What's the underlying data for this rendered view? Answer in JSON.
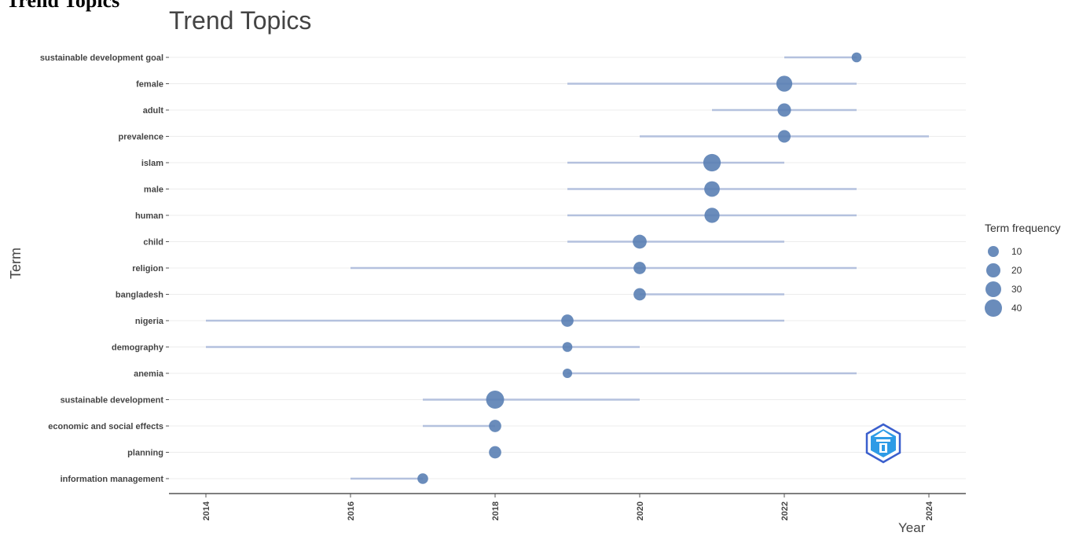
{
  "heading": "Trend Topics",
  "chart_data": {
    "type": "scatter",
    "title": "Trend Topics",
    "xlabel": "Year",
    "ylabel": "Term",
    "xlim": [
      2014,
      2024
    ],
    "x_ticks": [
      2014,
      2016,
      2018,
      2020,
      2022,
      2024
    ],
    "grid": true,
    "legend_position": "right",
    "legend": {
      "title": "Term frequency",
      "entries": [
        10,
        20,
        30,
        40
      ]
    },
    "colors": {
      "point": "#5a80b4",
      "range": "#b4c1de",
      "grid": "#ececec"
    },
    "terms": [
      {
        "term": "sustainable development goal",
        "year_q1": 2022,
        "year_median": 2023,
        "year_q3": 2023,
        "freq": 7
      },
      {
        "term": "female",
        "year_q1": 2019,
        "year_median": 2022,
        "year_q3": 2023,
        "freq": 29
      },
      {
        "term": "adult",
        "year_q1": 2021,
        "year_median": 2022,
        "year_q3": 2023,
        "freq": 18
      },
      {
        "term": "prevalence",
        "year_q1": 2020,
        "year_median": 2022,
        "year_q3": 2024,
        "freq": 15
      },
      {
        "term": "islam",
        "year_q1": 2019,
        "year_median": 2021,
        "year_q3": 2022,
        "freq": 37
      },
      {
        "term": "male",
        "year_q1": 2019,
        "year_median": 2021,
        "year_q3": 2023,
        "freq": 27
      },
      {
        "term": "human",
        "year_q1": 2019,
        "year_median": 2021,
        "year_q3": 2023,
        "freq": 25
      },
      {
        "term": "child",
        "year_q1": 2019,
        "year_median": 2020,
        "year_q3": 2022,
        "freq": 20
      },
      {
        "term": "religion",
        "year_q1": 2016,
        "year_median": 2020,
        "year_q3": 2023,
        "freq": 14
      },
      {
        "term": "bangladesh",
        "year_q1": 2020,
        "year_median": 2020,
        "year_q3": 2022,
        "freq": 14
      },
      {
        "term": "nigeria",
        "year_q1": 2014,
        "year_median": 2019,
        "year_q3": 2022,
        "freq": 14
      },
      {
        "term": "demography",
        "year_q1": 2014,
        "year_median": 2019,
        "year_q3": 2020,
        "freq": 7
      },
      {
        "term": "anemia",
        "year_q1": 2019,
        "year_median": 2019,
        "year_q3": 2023,
        "freq": 6
      },
      {
        "term": "sustainable development",
        "year_q1": 2017,
        "year_median": 2018,
        "year_q3": 2020,
        "freq": 40
      },
      {
        "term": "economic and social effects",
        "year_q1": 2017,
        "year_median": 2018,
        "year_q3": 2018,
        "freq": 14
      },
      {
        "term": "planning",
        "year_q1": 2018,
        "year_median": 2018,
        "year_q3": 2018,
        "freq": 14
      },
      {
        "term": "information management",
        "year_q1": 2016,
        "year_median": 2017,
        "year_q3": 2017,
        "freq": 9
      }
    ]
  }
}
